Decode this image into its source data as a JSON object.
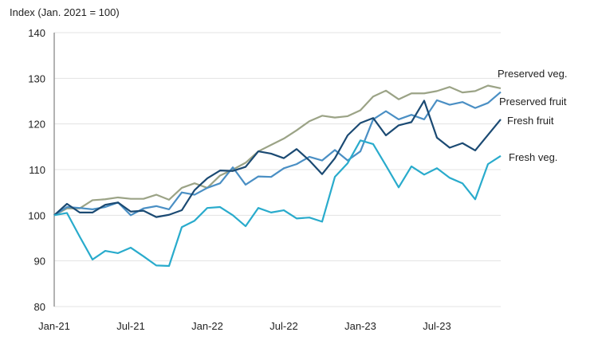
{
  "chart_data": {
    "type": "line",
    "ylabel": "Index (Jan. 2021 = 100)",
    "xlabel": "",
    "ylim": [
      80,
      140
    ],
    "yticks": [
      80,
      90,
      100,
      110,
      120,
      130,
      140
    ],
    "xtick_labels": [
      "Jan-21",
      "Jul-21",
      "Jan-22",
      "Jul-22",
      "Jan-23",
      "Jul-23"
    ],
    "x_start": "Jan-21",
    "x_end": "Dec-23",
    "grid": true,
    "legend": "inline labels at right end of lines",
    "series": [
      {
        "name": "Preserved veg.",
        "color": "#9ba386",
        "values": [
          100,
          101.5,
          101.5,
          103.3,
          103.5,
          103.9,
          103.6,
          103.6,
          104.5,
          103.4,
          106,
          107,
          106,
          108.7,
          110,
          111.5,
          114,
          115.4,
          116.8,
          118.6,
          120.6,
          121.8,
          121.4,
          121.7,
          123,
          126,
          127.3,
          125.4,
          126.7,
          126.7,
          127.2,
          128.1,
          126.9,
          127.2,
          128.4,
          127.8
        ]
      },
      {
        "name": "Preserved fruit",
        "color": "#4a8fc4",
        "values": [
          100,
          101.8,
          101.6,
          101.3,
          101.8,
          102.8,
          100,
          101.5,
          102,
          101.3,
          105,
          104.5,
          106,
          107,
          110.5,
          106.7,
          108.5,
          108.4,
          110.3,
          111.2,
          112.8,
          112,
          114.3,
          112,
          114,
          121,
          122.8,
          121,
          122,
          121,
          125.2,
          124.2,
          124.8,
          123.5,
          124.6,
          127
        ]
      },
      {
        "name": "Fresh fruit",
        "color": "#1b4a73",
        "values": [
          100,
          102.5,
          100.6,
          100.6,
          102.3,
          102.8,
          100.8,
          101,
          99.6,
          100.1,
          101.1,
          105.5,
          108.1,
          109.8,
          109.7,
          110.6,
          114,
          113.5,
          112.5,
          114.5,
          112,
          109,
          112.5,
          117.5,
          120.2,
          121.3,
          117.5,
          119.7,
          120.4,
          125.1,
          117,
          114.8,
          115.8,
          114.2,
          117.6,
          121
        ]
      },
      {
        "name": "Fresh veg.",
        "color": "#29abcc",
        "values": [
          100,
          100.5,
          95.3,
          90.3,
          92.2,
          91.7,
          92.9,
          91,
          89,
          88.9,
          97.4,
          98.8,
          101.6,
          101.8,
          100,
          97.6,
          101.6,
          100.6,
          101.1,
          99.3,
          99.5,
          98.6,
          108.4,
          111.4,
          116.4,
          115.6,
          110.9,
          106.1,
          110.7,
          108.9,
          110.3,
          108.2,
          107,
          103.5,
          111.2,
          113
        ]
      }
    ]
  }
}
